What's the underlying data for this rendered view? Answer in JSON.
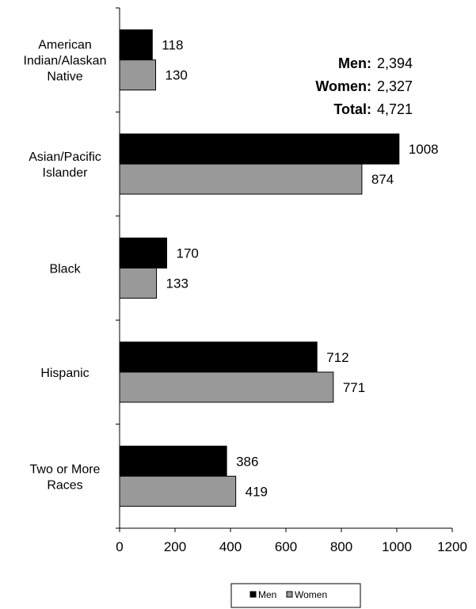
{
  "chart_data": {
    "type": "bar",
    "orientation": "horizontal",
    "categories": [
      [
        "American",
        "Indian/Alaskan",
        "Native"
      ],
      [
        "Asian/Pacific",
        "Islander"
      ],
      [
        "Black"
      ],
      [
        "Hispanic"
      ],
      [
        "Two or More",
        "Races"
      ]
    ],
    "series": [
      {
        "name": "Men",
        "values": [
          118,
          1008,
          170,
          712,
          386
        ],
        "color": "#000000"
      },
      {
        "name": "Women",
        "values": [
          130,
          874,
          133,
          771,
          419
        ],
        "color": "#999999"
      }
    ],
    "xlim": [
      0,
      1200
    ],
    "xticks": [
      0,
      200,
      400,
      600,
      800,
      1000,
      1200
    ],
    "grid": false,
    "legend_placement": "bottom",
    "summary": [
      {
        "label": "Men:",
        "value": "2,394"
      },
      {
        "label": "Women:",
        "value": "2,327"
      },
      {
        "label": "Total:",
        "value": "4,721"
      }
    ]
  }
}
